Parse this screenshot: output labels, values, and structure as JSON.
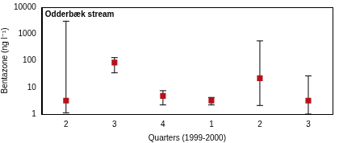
{
  "chart_data": {
    "type": "scatter",
    "title": "Odderbæk stream",
    "x_label": "Quarters (1999-2000)",
    "y_label": "Bentazone (ng l⁻¹)",
    "categories": [
      "2",
      "3",
      "4",
      "1",
      "2",
      "3"
    ],
    "values": [
      3.2,
      85,
      4.8,
      3.2,
      22,
      3.2
    ],
    "error_low": [
      1.1,
      35,
      2.2,
      2.2,
      2.1,
      1.0
    ],
    "error_high": [
      3000,
      130,
      7.5,
      4.2,
      550,
      27
    ],
    "color": "#b5121b",
    "marker": "square",
    "log": "y",
    "ylim": [
      1,
      10000
    ],
    "yticks": [
      1,
      10,
      100,
      1000,
      10000
    ],
    "grid": false
  }
}
